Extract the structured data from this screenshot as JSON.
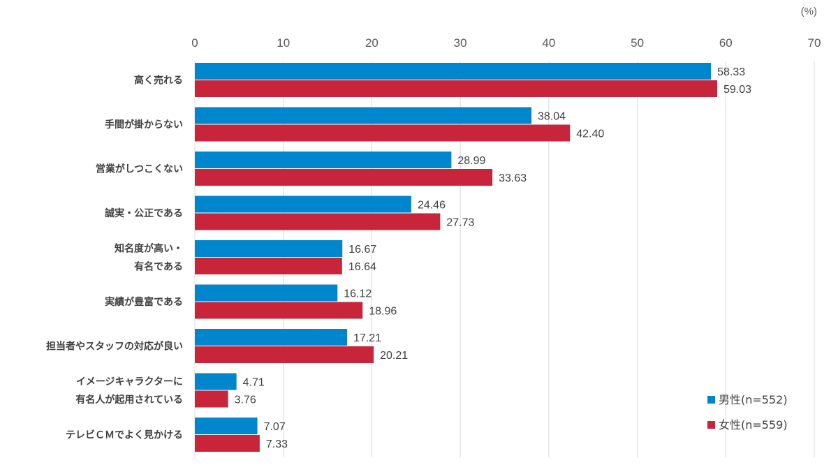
{
  "chart_data": {
    "type": "bar",
    "orientation": "horizontal",
    "unit": "(%)",
    "xlim": [
      0,
      70
    ],
    "ticks": [
      "0",
      "10",
      "20",
      "30",
      "40",
      "50",
      "60",
      "70"
    ],
    "tick_values": [
      0,
      10,
      20,
      30,
      40,
      50,
      60,
      70
    ],
    "grid": true,
    "legend_position": "bottom-right",
    "categories": [
      [
        "高く売れる"
      ],
      [
        "手間が掛からない"
      ],
      [
        "営業がしつこくない"
      ],
      [
        "誠実・公正である"
      ],
      [
        "知名度が高い・",
        "有名である"
      ],
      [
        "実績が豊富である"
      ],
      [
        "担当者やスタッフの対応が良い"
      ],
      [
        "イメージキャラクターに",
        "有名人が起用されている"
      ],
      [
        "テレビＣＭでよく見かける"
      ]
    ],
    "series": [
      {
        "name": "男性(n=552)",
        "color": "#0086cc",
        "values": [
          58.33,
          38.04,
          28.99,
          24.46,
          16.67,
          16.12,
          17.21,
          4.71,
          7.07
        ],
        "labels": [
          "58.33",
          "38.04",
          "28.99",
          "24.46",
          "16.67",
          "16.12",
          "17.21",
          "4.71",
          "7.07"
        ]
      },
      {
        "name": "女性(n=559)",
        "color": "#c8243a",
        "values": [
          59.03,
          42.4,
          33.63,
          27.73,
          16.64,
          18.96,
          20.21,
          3.76,
          7.33
        ],
        "labels": [
          "59.03",
          "42.40",
          "33.63",
          "27.73",
          "16.64",
          "18.96",
          "20.21",
          "3.76",
          "7.33"
        ]
      }
    ]
  }
}
